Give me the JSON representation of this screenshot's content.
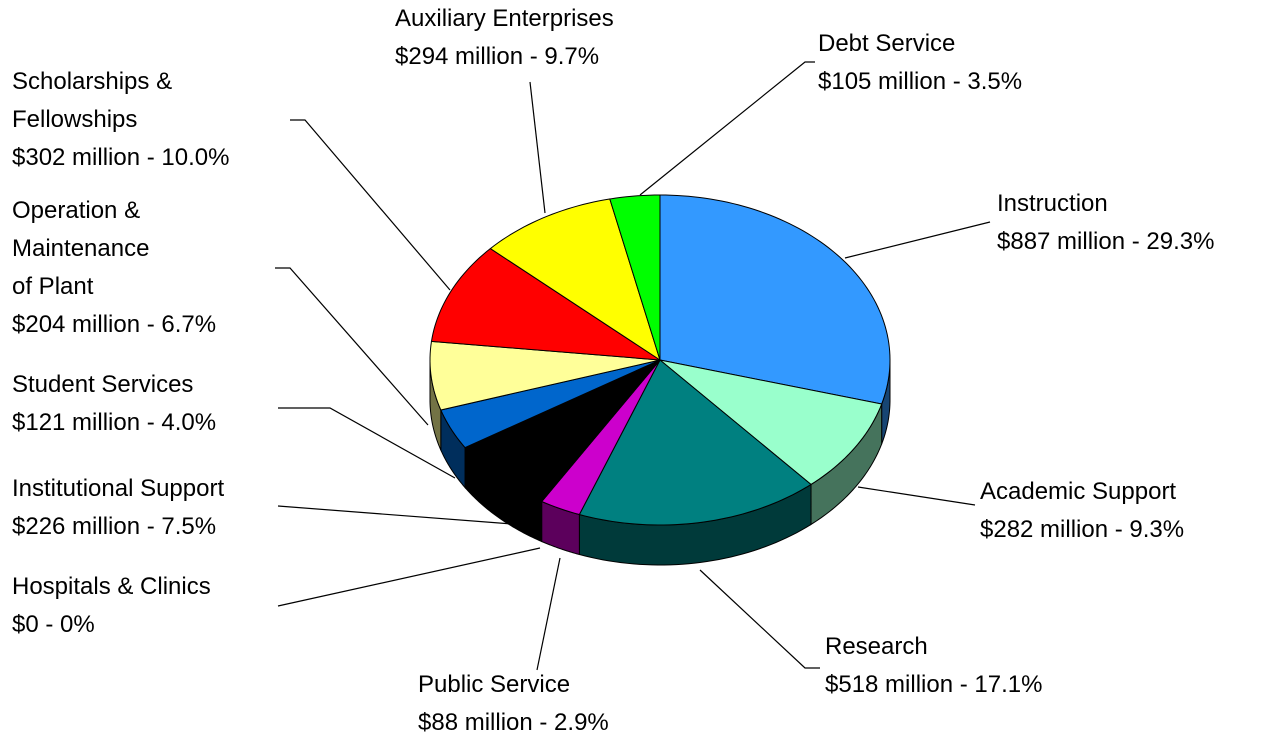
{
  "chart_data": {
    "type": "pie",
    "three_d": true,
    "categories": [
      [
        "Instruction"
      ],
      [
        "Academic Support"
      ],
      [
        "Research"
      ],
      [
        "Public Service"
      ],
      [
        "Hospitals & Clinics"
      ],
      [
        "Institutional Support"
      ],
      [
        "Student Services"
      ],
      [
        "Operation &",
        "Maintenance",
        "of Plant"
      ],
      [
        "Scholarships &",
        "Fellowships"
      ],
      [
        "Auxiliary Enterprises"
      ],
      [
        "Debt Service"
      ]
    ],
    "values": [
      29.3,
      9.3,
      17.1,
      2.9,
      0,
      7.5,
      4.0,
      6.7,
      10.0,
      9.7,
      3.5
    ],
    "value_labels": [
      "$887 million - 29.3%",
      "$282 million - 9.3%",
      "$518 million - 17.1%",
      "$88 million - 2.9%",
      "$0 - 0%",
      "$226 million - 7.5%",
      "$121 million - 4.0%",
      "$204 million - 6.7%",
      "$302 million - 10.0%",
      "$294 million - 9.7%",
      "$105 million - 3.5%"
    ],
    "colors": [
      "#3399ff",
      "#99ffcc",
      "#008080",
      "#cc00cc",
      "#993366",
      "#000000",
      "#0066cc",
      "#ffff99",
      "#ff0000",
      "#ffff00",
      "#00ff00"
    ]
  }
}
